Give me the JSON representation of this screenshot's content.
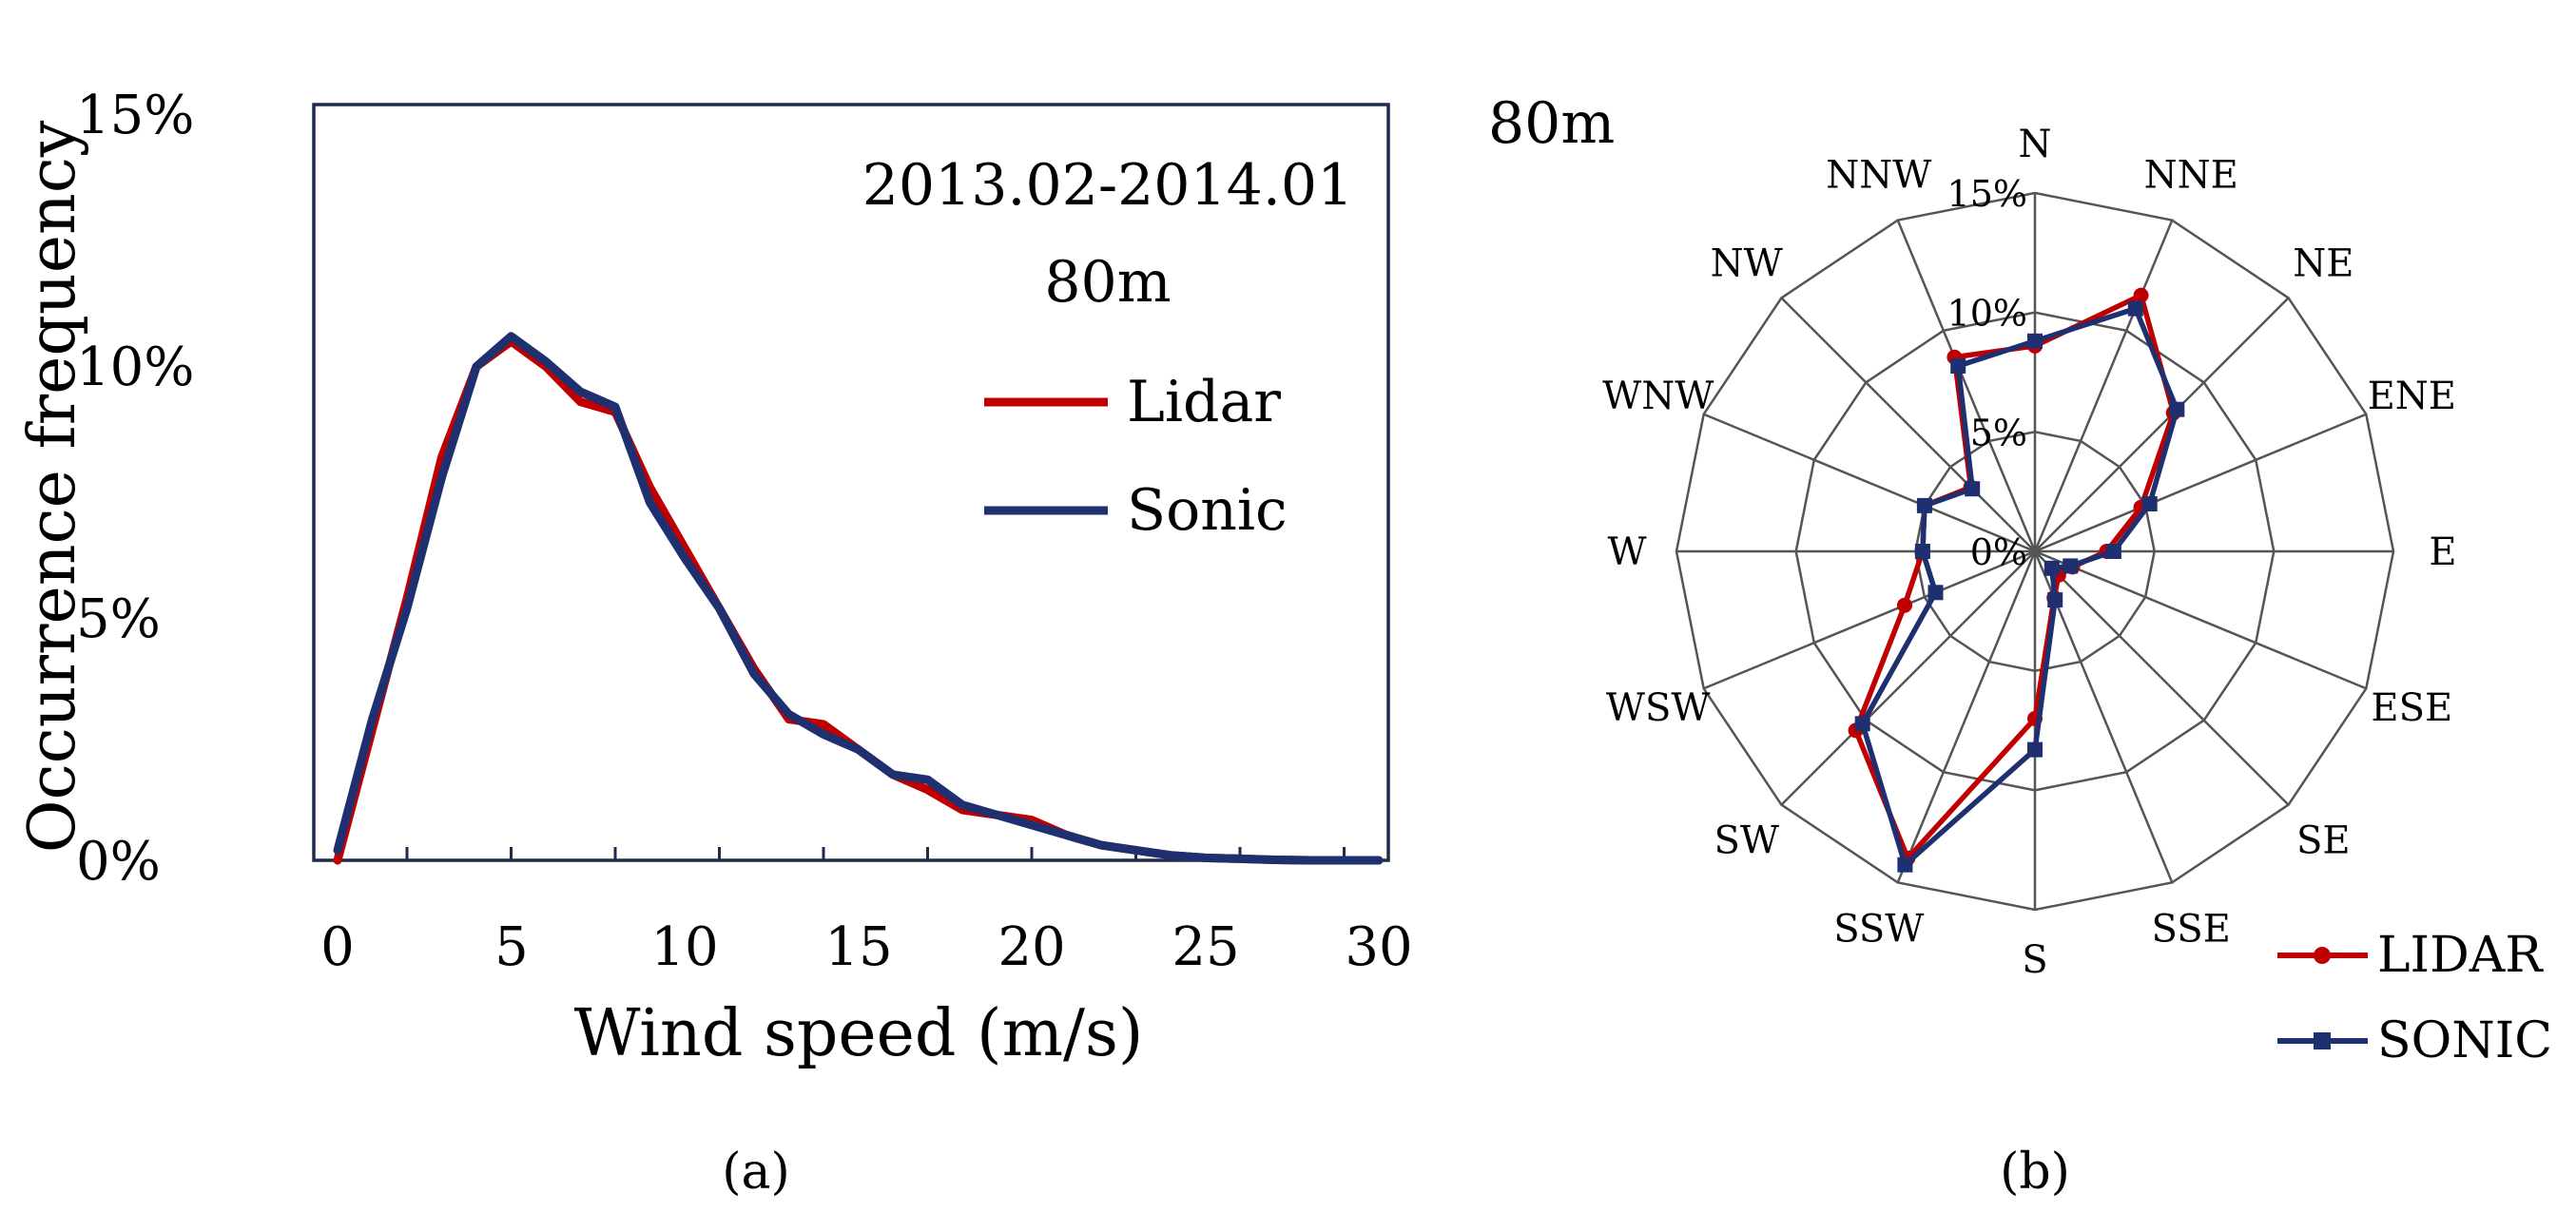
{
  "chart_data": [
    {
      "type": "line",
      "panel_label": "(a)",
      "xlabel": "Wind speed (m/s)",
      "ylabel": "Occurrence frequency",
      "xlim": [
        0,
        30
      ],
      "ylim": [
        0,
        15
      ],
      "x_ticks": [
        "0",
        "5",
        "10",
        "15",
        "20",
        "25",
        "30"
      ],
      "y_ticks": [
        "0%",
        "5%",
        "10%",
        "15%"
      ],
      "annotation": [
        "2013.02-2014.01",
        "80m"
      ],
      "colors": {
        "Lidar": "#c00000",
        "Sonic": "#1f3070"
      },
      "x": [
        0,
        1,
        2,
        3,
        4,
        5,
        6,
        7,
        8,
        9,
        10,
        11,
        12,
        13,
        14,
        15,
        16,
        17,
        18,
        19,
        20,
        21,
        22,
        23,
        24,
        25,
        26,
        27,
        28,
        29,
        30
      ],
      "series": [
        {
          "name": "Lidar",
          "values": [
            0.0,
            2.6,
            5.2,
            8.0,
            9.8,
            10.3,
            9.8,
            9.1,
            8.9,
            7.4,
            6.2,
            5.0,
            3.8,
            2.8,
            2.7,
            2.2,
            1.7,
            1.4,
            1.0,
            0.9,
            0.8,
            0.5,
            0.3,
            0.2,
            0.1,
            0.05,
            0.03,
            0.01,
            0.0,
            0.0,
            0.0
          ]
        },
        {
          "name": "Sonic",
          "values": [
            0.2,
            2.8,
            5.0,
            7.6,
            9.8,
            10.4,
            9.9,
            9.3,
            9.0,
            7.1,
            6.0,
            5.0,
            3.7,
            2.9,
            2.5,
            2.2,
            1.7,
            1.6,
            1.1,
            0.9,
            0.7,
            0.5,
            0.3,
            0.2,
            0.1,
            0.05,
            0.03,
            0.01,
            0.0,
            0.0,
            0.0
          ]
        }
      ]
    },
    {
      "type": "radar",
      "panel_label": "(b)",
      "title": "80m",
      "directions": [
        "N",
        "NNE",
        "NE",
        "ENE",
        "E",
        "ESE",
        "SE",
        "SSE",
        "S",
        "SSW",
        "SW",
        "WSW",
        "W",
        "WNW",
        "NW",
        "NNW"
      ],
      "r_ticks": [
        "0%",
        "5%",
        "10%",
        "15%"
      ],
      "rlim": [
        0,
        15
      ],
      "colors": {
        "LIDAR": "#c00000",
        "SONIC": "#1f3070"
      },
      "series": [
        {
          "name": "LIDAR",
          "marker": "circle",
          "values": [
            8.6,
            11.6,
            8.2,
            4.8,
            3.0,
            1.7,
            1.4,
            2.1,
            7.0,
            13.9,
            10.6,
            5.9,
            4.7,
            5.0,
            3.8,
            8.8
          ]
        },
        {
          "name": "SONIC",
          "marker": "square",
          "values": [
            8.8,
            11.0,
            8.4,
            5.2,
            3.3,
            1.6,
            1.0,
            2.2,
            8.3,
            14.2,
            10.2,
            4.5,
            4.7,
            5.0,
            3.7,
            8.4
          ]
        }
      ]
    }
  ]
}
